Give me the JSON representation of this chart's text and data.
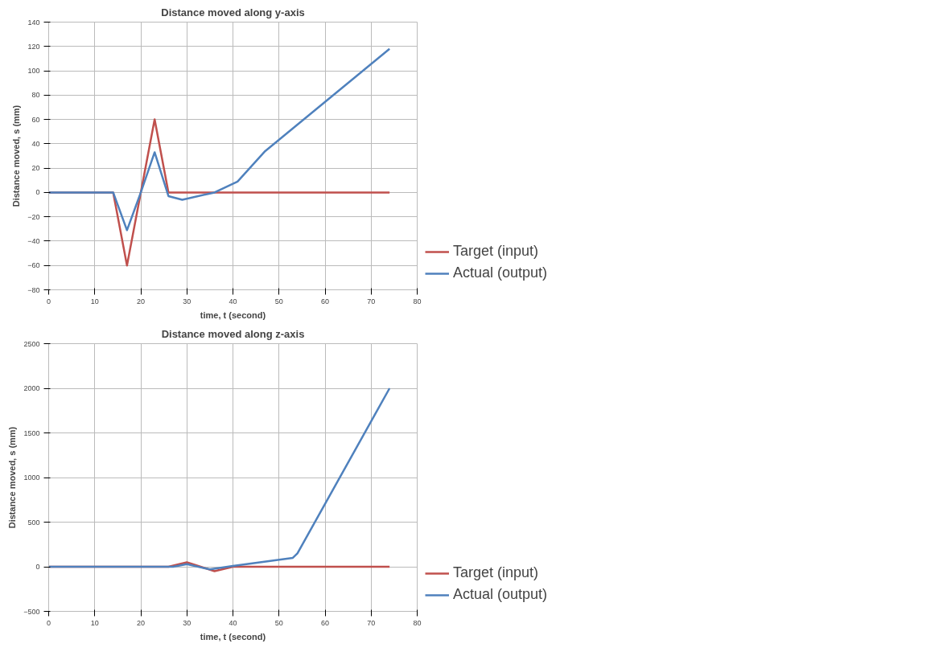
{
  "chart_data": [
    {
      "type": "line",
      "title": "Distance moved along y-axis",
      "xlabel": "time, t (second)",
      "ylabel": "Distance moved, s (mm)",
      "xlim": [
        0,
        80
      ],
      "xticks": [
        0,
        10,
        20,
        30,
        40,
        50,
        60,
        70,
        80
      ],
      "ylim": [
        -80,
        140
      ],
      "yticks": [
        -80,
        -60,
        -40,
        -20,
        0,
        20,
        40,
        60,
        80,
        100,
        120,
        140
      ],
      "grid": true,
      "legend": "right",
      "marker": "none",
      "line_style": "solid",
      "series": [
        {
          "name": "Target (input)",
          "color": "#c0504d",
          "x": [
            0,
            14,
            17,
            20,
            23,
            26,
            74
          ],
          "values": [
            0,
            0,
            -60,
            0,
            60,
            0,
            0
          ]
        },
        {
          "name": "Actual (output)",
          "color": "#4f81bd",
          "x": [
            0,
            14,
            17,
            20,
            23,
            26,
            29,
            36,
            41,
            47,
            74
          ],
          "values": [
            0,
            0,
            -31,
            0,
            33,
            -3,
            -6,
            0,
            9,
            34,
            118
          ]
        }
      ]
    },
    {
      "type": "line",
      "title": "Distance moved along z-axis",
      "xlabel": "time, t (second)",
      "ylabel": "Distance moved, s (mm)",
      "xlim": [
        0,
        80
      ],
      "xticks": [
        0,
        10,
        20,
        30,
        40,
        50,
        60,
        70,
        80
      ],
      "ylim": [
        -500,
        2500
      ],
      "yticks": [
        -500,
        0,
        500,
        1000,
        1500,
        2000,
        2500
      ],
      "grid": true,
      "legend": "right",
      "marker": "none",
      "line_style": "solid",
      "series": [
        {
          "name": "Target (input)",
          "color": "#c0504d",
          "x": [
            0,
            26,
            30,
            36,
            40,
            74
          ],
          "values": [
            0,
            0,
            50,
            -50,
            0,
            0
          ]
        },
        {
          "name": "Actual (output)",
          "color": "#4f81bd",
          "x": [
            0,
            27,
            30,
            35,
            40,
            53,
            54,
            74
          ],
          "values": [
            0,
            0,
            30,
            -30,
            10,
            100,
            150,
            2000
          ]
        }
      ]
    }
  ]
}
